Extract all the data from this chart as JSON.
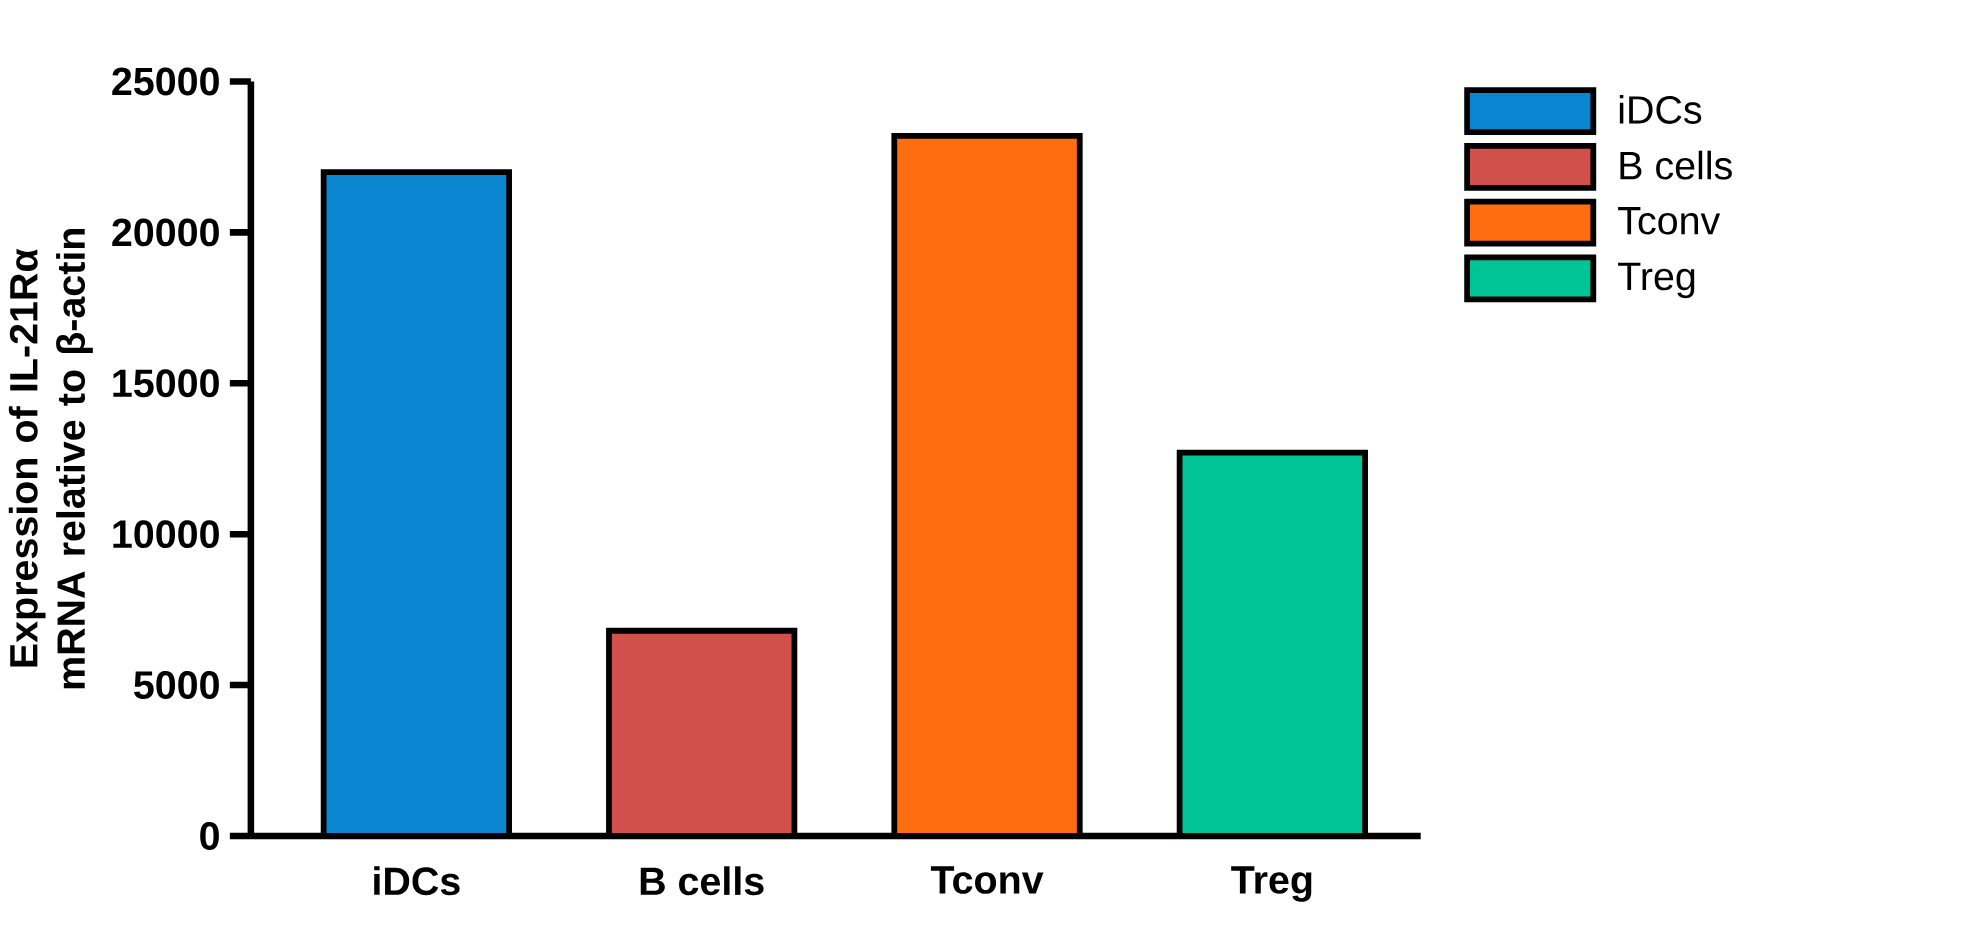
{
  "chart_data": {
    "type": "bar",
    "ylabel": "Expression of IL-21Rα mRNA relative to β-actin",
    "categories": [
      "iDCs",
      "B cells",
      "Tconv",
      "Treg"
    ],
    "series": [
      {
        "name": "iDCs",
        "color": "#0a86d0",
        "values": [
          22000,
          null,
          null,
          null
        ]
      },
      {
        "name": "B cells",
        "color": "#d2504c",
        "values": [
          null,
          6800,
          null,
          null
        ]
      },
      {
        "name": "Tconv",
        "color": "#ff6d10",
        "values": [
          null,
          null,
          23200,
          null
        ]
      },
      {
        "name": "Treg",
        "color": "#00c496",
        "values": [
          null,
          null,
          null,
          12700
        ]
      }
    ],
    "ylim": [
      0,
      25000
    ],
    "yticks": [
      0,
      5000,
      10000,
      15000,
      20000,
      25000
    ],
    "legend": "right"
  }
}
